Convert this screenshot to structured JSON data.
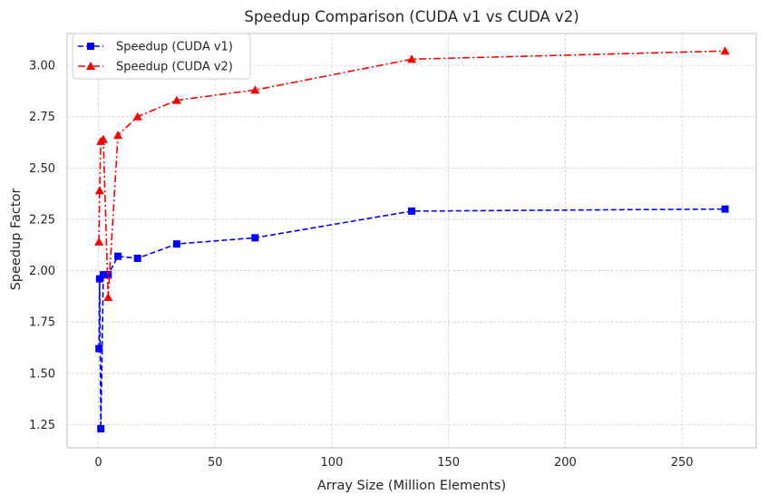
{
  "chart_data": {
    "type": "line",
    "title": "Speedup Comparison (CUDA v1 vs CUDA v2)",
    "xlabel": "Array Size (Million Elements)",
    "ylabel": "Speedup Factor",
    "xlim": [
      -13.4,
      281.8
    ],
    "ylim": [
      1.137,
      3.155
    ],
    "xticks": [
      0,
      50,
      100,
      150,
      200,
      250
    ],
    "yticks": [
      1.25,
      1.5,
      1.75,
      2.0,
      2.25,
      2.5,
      2.75,
      3.0
    ],
    "ytick_labels": [
      "1.25",
      "1.50",
      "1.75",
      "2.00",
      "2.25",
      "2.50",
      "2.75",
      "3.00"
    ],
    "grid": true,
    "legend_position": "top-left",
    "series": [
      {
        "name": "Speedup (CUDA v1)",
        "color": "#0000ff",
        "linestyle": "dashed",
        "marker": "square",
        "x": [
          0.26,
          0.52,
          1.05,
          2.1,
          4.19,
          8.39,
          16.78,
          33.55,
          67.11,
          134.22,
          268.44
        ],
        "y": [
          1.62,
          1.96,
          1.23,
          1.98,
          1.98,
          2.07,
          2.06,
          2.13,
          2.16,
          2.29,
          2.3
        ]
      },
      {
        "name": "Speedup (CUDA v2)",
        "color": "#ff0000",
        "linestyle": "dashdot",
        "marker": "triangle",
        "x": [
          0.26,
          0.52,
          1.05,
          2.1,
          4.19,
          8.39,
          16.78,
          33.55,
          67.11,
          134.22,
          268.44
        ],
        "y": [
          2.14,
          2.39,
          2.63,
          2.64,
          1.87,
          2.66,
          2.75,
          2.83,
          2.88,
          3.03,
          3.07
        ]
      }
    ]
  }
}
